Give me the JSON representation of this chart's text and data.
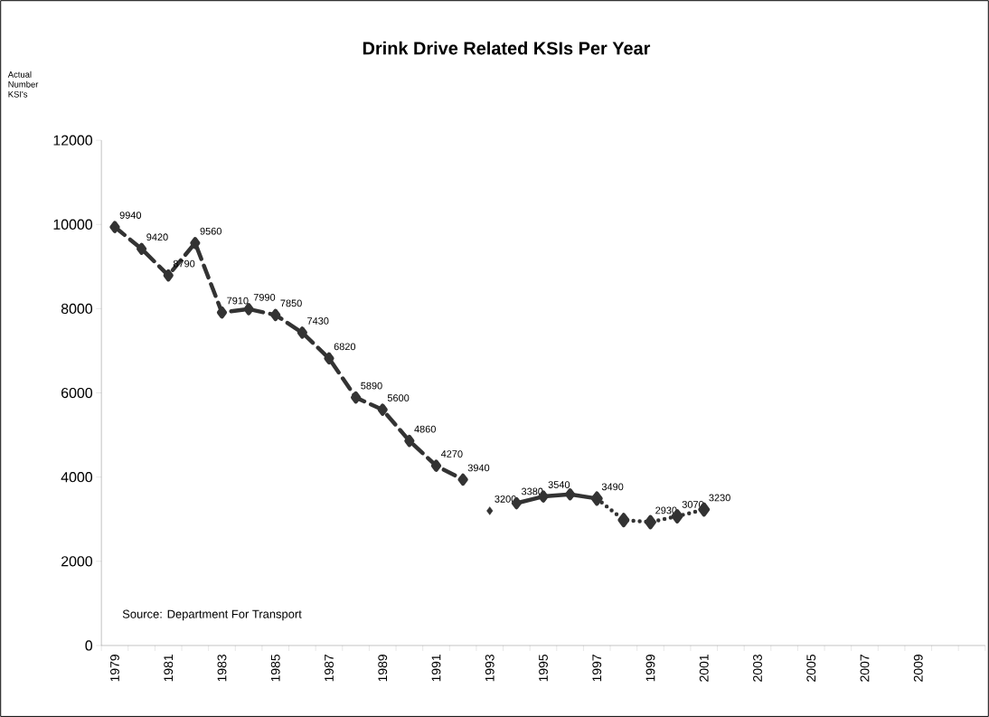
{
  "chart_data": {
    "type": "line",
    "title": "Drink Drive Related KSIs Per Year",
    "annotations": [
      "Actual Number KSI's",
      "Source: Department For Transport"
    ],
    "categories": [
      "1979",
      null,
      "1981",
      null,
      "1983",
      null,
      "1985",
      null,
      "1987",
      null,
      "1989",
      null,
      "1991",
      null,
      "1993",
      null,
      "1995",
      null,
      "1997",
      null,
      "1999",
      null,
      "2001",
      null,
      "2003",
      null,
      "2005",
      null,
      "2007",
      null,
      "2009",
      null,
      null
    ],
    "ylim": [
      0,
      12000
    ],
    "yticks": [
      0,
      2000,
      4000,
      6000,
      8000,
      10000,
      12000
    ],
    "marker": "diamond",
    "series": [
      {
        "color": "#333333",
        "line_style": "dashed",
        "values": [
          9940,
          9420,
          8790,
          9560,
          7910,
          7990,
          7850,
          7430,
          6820,
          5890,
          5600,
          4860,
          4270,
          3940,
          null,
          null,
          null,
          null,
          null,
          null,
          null,
          null,
          null,
          null,
          null,
          null,
          null,
          null,
          null,
          null,
          null,
          null,
          null
        ],
        "value_labels": [
          "9940",
          "9420",
          "8790",
          "9560",
          "7910",
          "7990",
          "7850",
          "7430",
          "6820",
          "5890",
          "5600",
          "4860",
          "4270",
          "3940",
          null,
          null,
          null,
          null,
          null,
          null,
          null,
          null,
          null,
          null,
          null,
          null,
          null,
          null,
          null,
          null,
          null,
          null,
          null
        ]
      },
      {
        "type": "scatter",
        "color": "#333333",
        "values": [
          null,
          null,
          null,
          null,
          null,
          null,
          null,
          null,
          null,
          null,
          null,
          null,
          null,
          null,
          3200,
          null,
          null,
          null,
          null,
          null,
          null,
          null,
          null,
          null,
          null,
          null,
          null,
          null,
          null,
          null,
          null,
          null,
          null
        ],
        "value_labels": [
          null,
          null,
          null,
          null,
          null,
          null,
          null,
          null,
          null,
          null,
          null,
          null,
          null,
          null,
          "3200",
          null,
          null,
          null,
          null,
          null,
          null,
          null,
          null,
          null,
          null,
          null,
          null,
          null,
          null,
          null,
          null,
          null,
          null
        ]
      },
      {
        "color": "#333333",
        "line_style": "solid",
        "values": [
          null,
          null,
          null,
          null,
          null,
          null,
          null,
          null,
          null,
          null,
          null,
          null,
          null,
          null,
          null,
          3380,
          3540,
          3590,
          3490,
          null,
          null,
          null,
          null,
          null,
          null,
          null,
          null,
          null,
          null,
          null,
          null,
          null,
          null
        ],
        "value_labels": [
          null,
          null,
          null,
          null,
          null,
          null,
          null,
          null,
          null,
          null,
          null,
          null,
          null,
          null,
          null,
          "3380",
          "3540",
          null,
          "3490",
          null,
          null,
          null,
          null,
          null,
          null,
          null,
          null,
          null,
          null,
          null,
          null,
          null,
          null
        ]
      },
      {
        "color": "#333333",
        "line_style": "dotted",
        "values": [
          null,
          null,
          null,
          null,
          null,
          null,
          null,
          null,
          null,
          null,
          null,
          null,
          null,
          null,
          null,
          null,
          null,
          null,
          3490,
          2980,
          2930,
          3070,
          3230,
          null,
          null,
          null,
          null,
          null,
          null,
          null,
          null,
          null,
          null
        ],
        "value_labels": [
          null,
          null,
          null,
          null,
          null,
          null,
          null,
          null,
          null,
          null,
          null,
          null,
          null,
          null,
          null,
          null,
          null,
          null,
          null,
          null,
          "2930",
          "3070",
          "3230",
          null,
          null,
          null,
          null,
          null,
          null,
          null,
          null,
          null,
          null
        ]
      }
    ]
  }
}
